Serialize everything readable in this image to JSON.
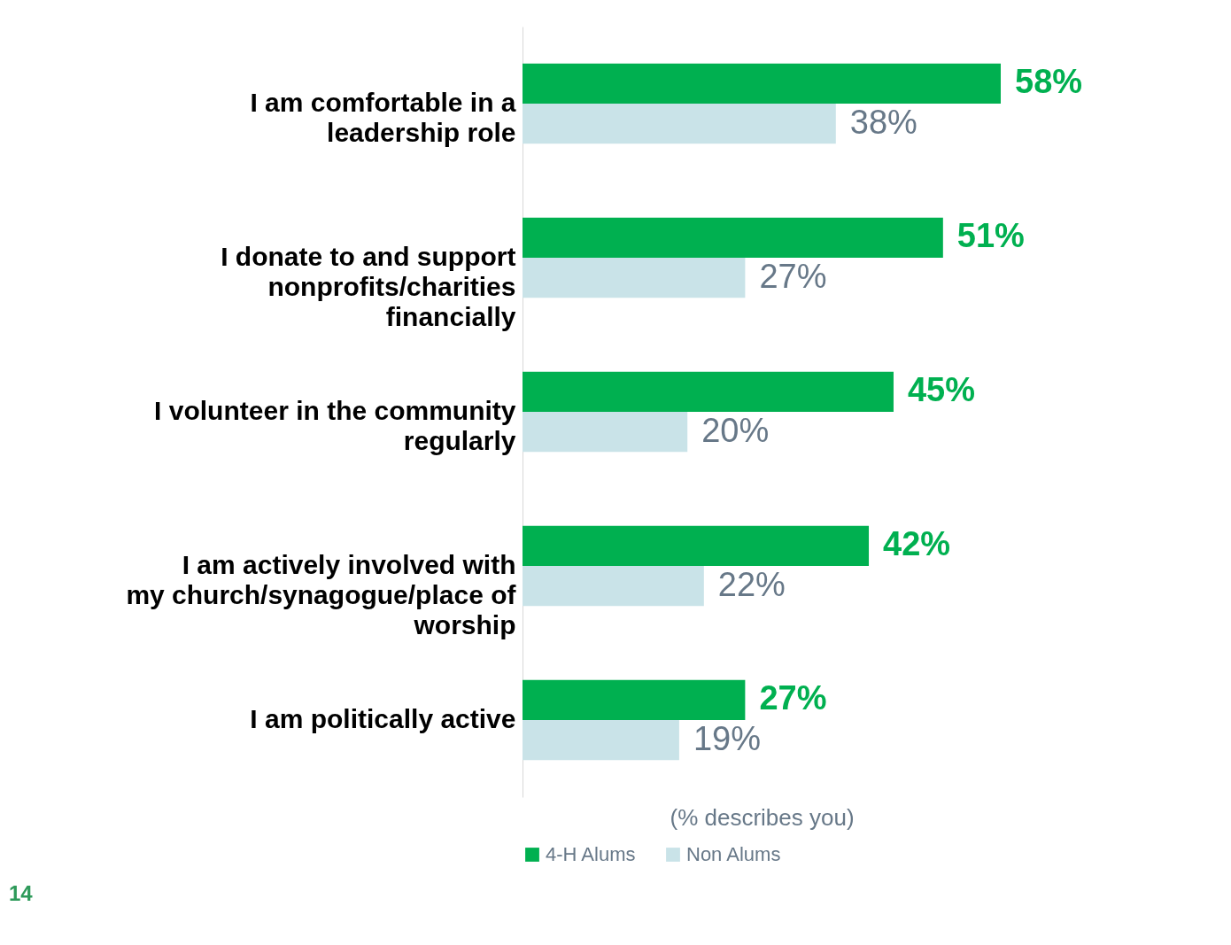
{
  "chart_data": {
    "type": "bar",
    "orientation": "horizontal",
    "categories": [
      "I am comfortable in a leadership role",
      "I donate to and support nonprofits/charities financially",
      "I volunteer in the community regularly",
      "I am actively involved with my church/synagogue/place of worship",
      "I am politically active"
    ],
    "series": [
      {
        "name": "4-H Alums",
        "color": "#00b050",
        "values": [
          58,
          51,
          45,
          42,
          27
        ],
        "value_labels": [
          "58%",
          "51%",
          "45%",
          "42%",
          "27%"
        ]
      },
      {
        "name": "Non Alums",
        "color": "#c9e3e8",
        "values": [
          38,
          27,
          20,
          22,
          19
        ],
        "value_labels": [
          "38%",
          "27%",
          "20%",
          "22%",
          "19%"
        ]
      }
    ],
    "xlabel": "(% describes you)",
    "legend": "bottom",
    "grid": false,
    "tick_labels": "y",
    "annotations": [
      "14"
    ]
  }
}
